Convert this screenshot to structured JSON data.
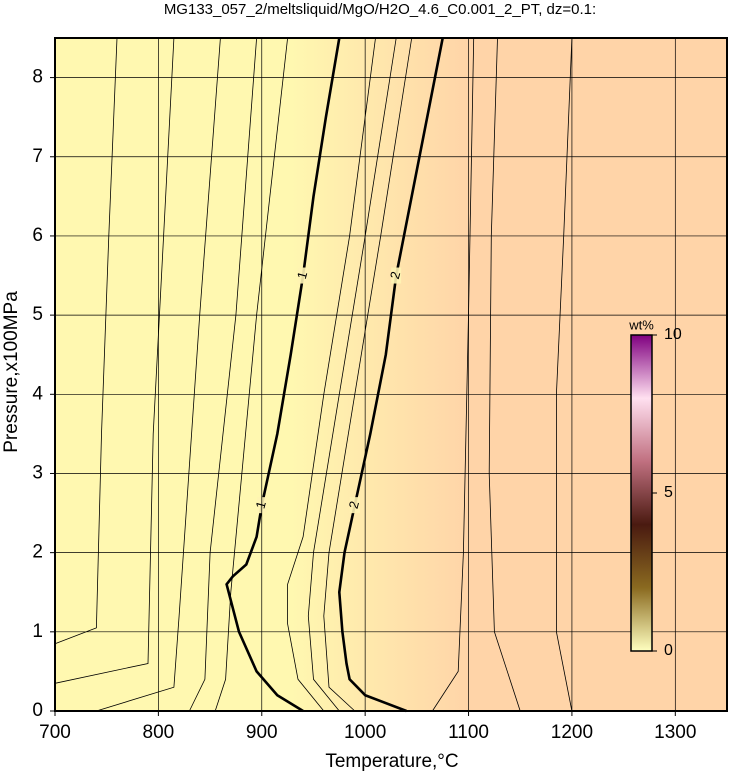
{
  "chart_data": {
    "type": "contour",
    "title": "MG133_057_2/meltsliquid/MgO/H2O_4.6_C0.001_2_PT, dz=0.1:",
    "x_label": "Temperature,°C",
    "y_label": "Pressure,x100MPa",
    "xlim": [
      700,
      1350
    ],
    "ylim": [
      0,
      8.5
    ],
    "xticks": [
      700,
      800,
      900,
      1000,
      1100,
      1200,
      1300
    ],
    "yticks": [
      0,
      1,
      2,
      3,
      4,
      5,
      6,
      7,
      8
    ],
    "grid": true,
    "contours": [
      {
        "x": [
          700,
          740,
          745,
          752,
          760
        ],
        "y": [
          0.85,
          1.05,
          3.5,
          6,
          8.5
        ]
      },
      {
        "x": [
          700,
          790,
          795,
          805,
          815
        ],
        "y": [
          0.35,
          0.6,
          3.5,
          6,
          8.5
        ]
      },
      {
        "x": [
          740,
          815,
          820,
          840,
          860
        ],
        "y": [
          0,
          0.3,
          1.2,
          5,
          8.5
        ]
      },
      {
        "x": [
          830,
          845,
          850,
          875,
          895
        ],
        "y": [
          0,
          0.4,
          2,
          5,
          8.5
        ]
      },
      {
        "x": [
          855,
          865,
          870,
          895,
          925
        ],
        "y": [
          0,
          0.4,
          1.5,
          5,
          8.5
        ]
      },
      {
        "level": 1,
        "x": [
          940,
          915,
          895,
          878,
          866,
          872,
          885,
          895,
          900,
          915,
          928,
          940,
          950,
          962,
          975
        ],
        "y": [
          0,
          0.2,
          0.5,
          1.0,
          1.6,
          1.7,
          1.85,
          2.2,
          2.6,
          3.5,
          4.5,
          5.5,
          6.5,
          7.5,
          8.5
        ]
      },
      {
        "x": [
          960,
          935,
          925,
          925,
          940,
          960,
          985,
          1010
        ],
        "y": [
          0,
          0.4,
          1.1,
          1.6,
          2.2,
          4,
          6,
          8.5
        ]
      },
      {
        "x": [
          975,
          950,
          945,
          950,
          975,
          1000,
          1030
        ],
        "y": [
          0,
          0.4,
          1.2,
          2,
          4,
          6,
          8.5
        ]
      },
      {
        "x": [
          990,
          965,
          960,
          965,
          990,
          1015,
          1045
        ],
        "y": [
          0,
          0.3,
          1.2,
          2,
          4,
          6,
          8.5
        ]
      },
      {
        "level": 2,
        "x": [
          1040,
          1000,
          985,
          982,
          978,
          975,
          980,
          990,
          1005,
          1020,
          1030,
          1045,
          1060,
          1075
        ],
        "y": [
          0,
          0.2,
          0.4,
          0.6,
          1.0,
          1.5,
          2.0,
          2.6,
          3.5,
          4.5,
          5.5,
          6.5,
          7.5,
          8.5
        ]
      },
      {
        "x": [
          1065,
          1090,
          1095,
          1100,
          1105
        ],
        "y": [
          0,
          0.5,
          2,
          5,
          8.5
        ]
      },
      {
        "x": [
          1150,
          1125,
          1120,
          1122,
          1128
        ],
        "y": [
          0,
          1,
          3,
          6,
          8.5
        ]
      },
      {
        "x": [
          1200,
          1185,
          1185,
          1192,
          1200
        ],
        "y": [
          0,
          1,
          4,
          6,
          8.5
        ]
      }
    ],
    "line_color": "#000000",
    "field_colors": [
      "#fff8b0",
      "#ffd4a8"
    ],
    "colorbar": {
      "label": "wt%",
      "lim": [
        0,
        10
      ],
      "ticks": [
        0,
        5,
        10
      ],
      "colors": [
        "#ffffc0",
        "#8a6a20",
        "#4a1a10",
        "#c07080",
        "#ffe0f0",
        "#800080"
      ]
    }
  }
}
